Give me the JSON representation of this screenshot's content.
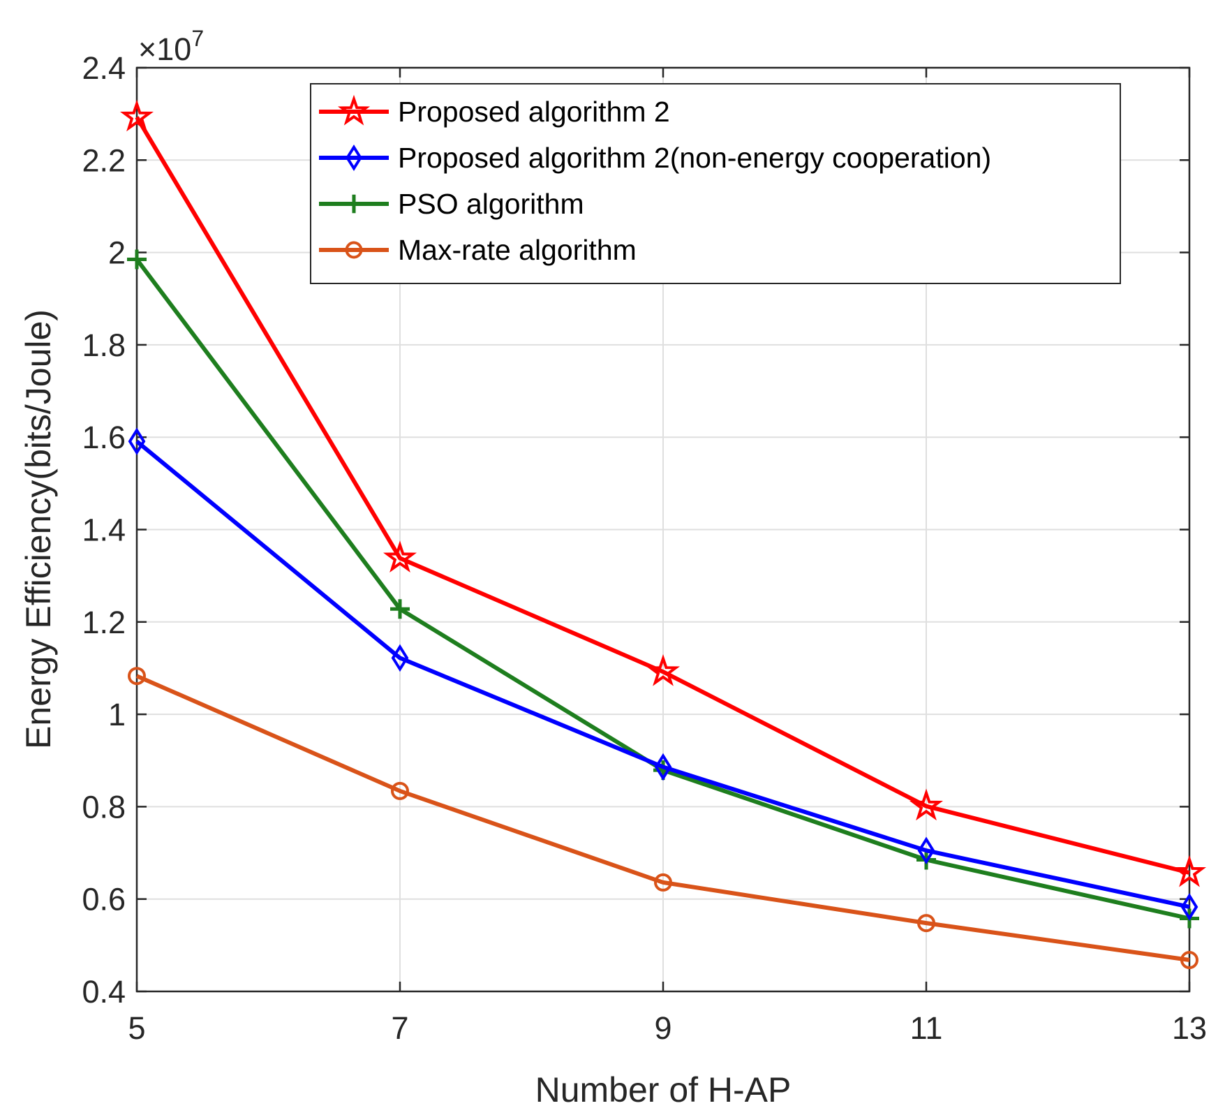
{
  "chart_data": {
    "type": "line",
    "title": "",
    "xlabel": "Number of H-AP",
    "ylabel": "Energy Efficiency(bits/Joule)",
    "exponent_label": "×10",
    "exponent_power": "7",
    "x": [
      5,
      7,
      9,
      11,
      13
    ],
    "xlim": [
      5,
      13
    ],
    "ylim": [
      0.4,
      2.4
    ],
    "y_scale_factor": 10000000,
    "xticks": [
      "5",
      "7",
      "9",
      "11",
      "13"
    ],
    "yticks": [
      "0.4",
      "0.6",
      "0.8",
      "1",
      "1.2",
      "1.4",
      "1.6",
      "1.8",
      "2",
      "2.2",
      "2.4"
    ],
    "grid": true,
    "legend_position": "top-right",
    "series": [
      {
        "name": "Proposed algorithm 2",
        "color": "#ff0000",
        "marker": "star",
        "values": [
          2.293,
          1.338,
          1.092,
          0.801,
          0.657
        ]
      },
      {
        "name": "Proposed algorithm 2(non-energy cooperation)",
        "color": "#0000ff",
        "marker": "diamond",
        "values": [
          1.591,
          1.122,
          0.886,
          0.705,
          0.583
        ]
      },
      {
        "name": "PSO algorithm",
        "color": "#1e7e1e",
        "marker": "plus",
        "values": [
          1.985,
          1.228,
          0.879,
          0.685,
          0.558
        ]
      },
      {
        "name": "Max-rate algorithm",
        "color": "#d95319",
        "marker": "circle",
        "values": [
          1.083,
          0.834,
          0.636,
          0.548,
          0.468
        ]
      }
    ]
  }
}
